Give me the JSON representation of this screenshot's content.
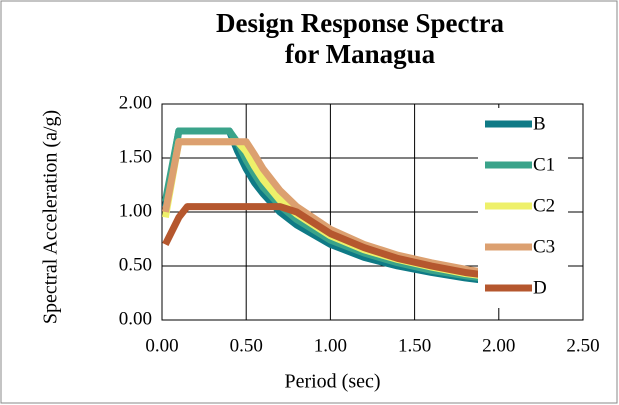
{
  "chart_data": {
    "type": "line",
    "title": "Design Response Spectra for Managua",
    "x_label": "Period (sec)",
    "y_label": "Spectral  Acceleration (a/g)",
    "x": [
      0.02,
      0.1,
      0.15,
      0.2,
      0.3,
      0.4,
      0.45,
      0.5,
      0.55,
      0.6,
      0.7,
      0.8,
      1.0,
      1.2,
      1.4,
      1.6,
      1.8,
      2.0
    ],
    "series": [
      {
        "name": "B",
        "color": "#0f7a86",
        "values": [
          1.05,
          1.75,
          1.75,
          1.75,
          1.75,
          1.75,
          1.56,
          1.4,
          1.27,
          1.17,
          1.0,
          0.88,
          0.7,
          0.58,
          0.5,
          0.44,
          0.39,
          0.35
        ]
      },
      {
        "name": "C1",
        "color": "#3aa38a",
        "values": [
          1.1,
          1.75,
          1.75,
          1.75,
          1.75,
          1.75,
          1.64,
          1.48,
          1.35,
          1.23,
          1.06,
          0.93,
          0.74,
          0.62,
          0.53,
          0.46,
          0.41,
          0.37
        ]
      },
      {
        "name": "C2",
        "color": "#eef06a",
        "values": [
          0.95,
          1.65,
          1.65,
          1.65,
          1.65,
          1.65,
          1.65,
          1.56,
          1.42,
          1.3,
          1.11,
          0.98,
          0.78,
          0.65,
          0.56,
          0.49,
          0.43,
          0.39
        ]
      },
      {
        "name": "C3",
        "color": "#dca070",
        "values": [
          1.0,
          1.65,
          1.65,
          1.65,
          1.65,
          1.65,
          1.65,
          1.65,
          1.53,
          1.4,
          1.2,
          1.05,
          0.84,
          0.7,
          0.6,
          0.53,
          0.47,
          0.42
        ]
      },
      {
        "name": "D",
        "color": "#b5572e",
        "values": [
          0.7,
          0.95,
          1.05,
          1.05,
          1.05,
          1.05,
          1.05,
          1.05,
          1.05,
          1.05,
          1.05,
          1.0,
          0.8,
          0.67,
          0.57,
          0.5,
          0.44,
          0.4
        ]
      }
    ],
    "xlim": [
      0,
      2.5
    ],
    "ylim": [
      0,
      2
    ],
    "xticks": [
      {
        "value": 0,
        "label": "0.00"
      },
      {
        "value": 0.5,
        "label": "0.50"
      },
      {
        "value": 1,
        "label": "1.00"
      },
      {
        "value": 1.5,
        "label": "1.50"
      },
      {
        "value": 2,
        "label": "2.00"
      },
      {
        "value": 2.5,
        "label": "2.50"
      }
    ],
    "yticks": [
      {
        "value": 0,
        "label": "0.00"
      },
      {
        "value": 0.5,
        "label": "0.50"
      },
      {
        "value": 1,
        "label": "1.00"
      },
      {
        "value": 1.5,
        "label": "1.50"
      },
      {
        "value": 2,
        "label": "2.00"
      }
    ],
    "grid": true,
    "legend": "right"
  }
}
